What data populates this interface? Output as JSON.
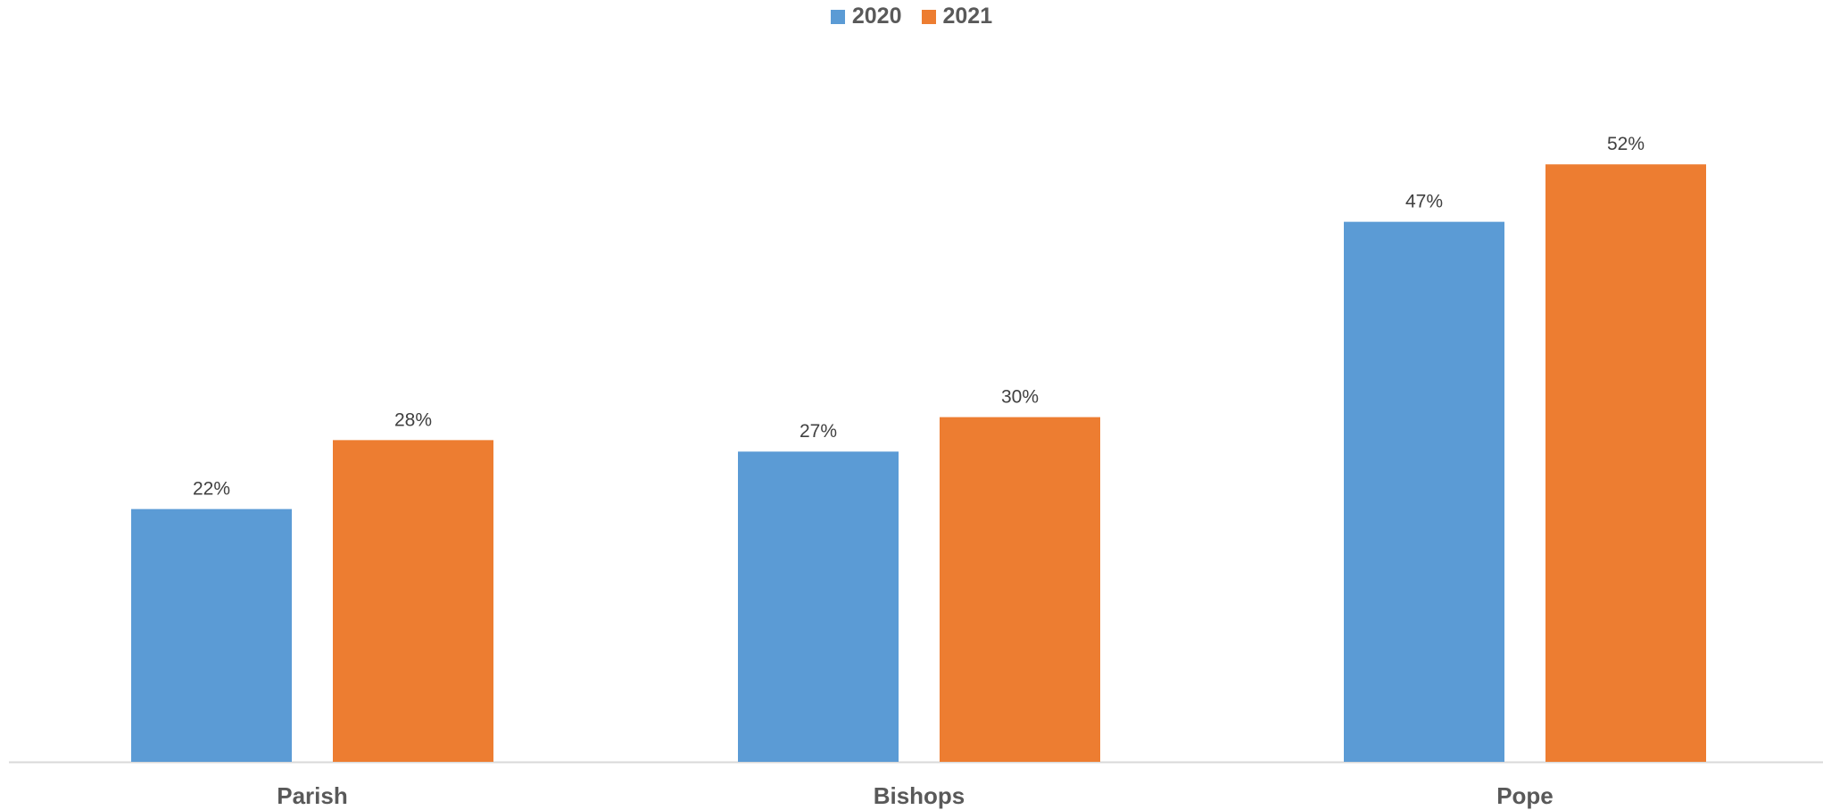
{
  "chart_data": {
    "type": "bar",
    "categories": [
      "Parish",
      "Bishops",
      "Pope"
    ],
    "series": [
      {
        "name": "2020",
        "color": "#5B9BD5",
        "values": [
          22,
          27,
          47
        ],
        "labels": [
          "22%",
          "27%",
          "47%"
        ]
      },
      {
        "name": "2021",
        "color": "#ED7D31",
        "values": [
          28,
          30,
          52
        ],
        "labels": [
          "28%",
          "30%",
          "52%"
        ]
      }
    ],
    "value_unit": "%",
    "ylim": [
      0,
      60
    ],
    "grid": false,
    "legend_position": "top-center",
    "axis_color": "#D9D9D9"
  }
}
